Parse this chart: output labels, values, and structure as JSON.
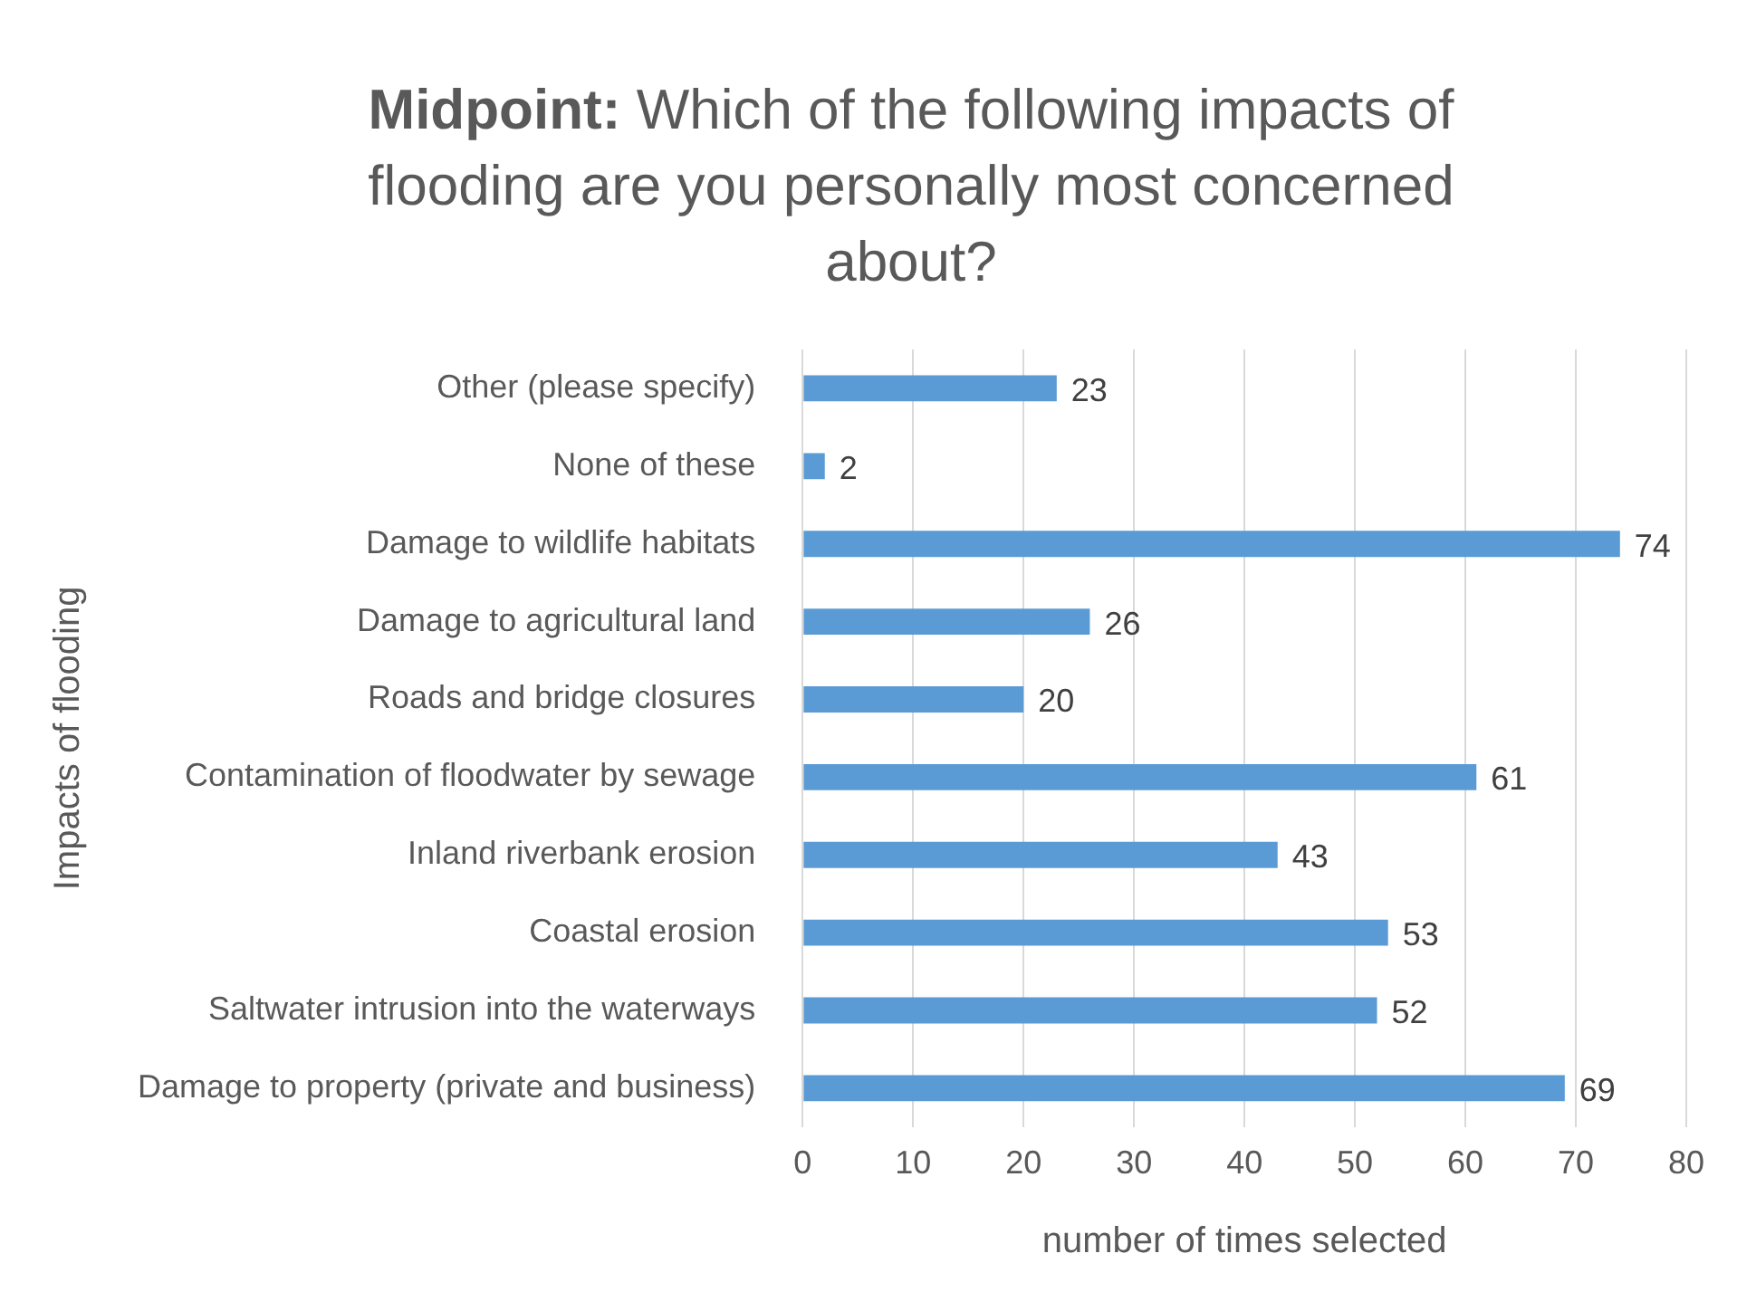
{
  "chart_data": {
    "type": "bar",
    "orientation": "horizontal",
    "title": "Midpoint: Which of the following impacts of flooding are you personally most concerned about?",
    "xlabel": "number of times selected",
    "ylabel": "Impacts of flooding",
    "categories": [
      "Other (please specify)",
      "None of these",
      "Damage to wildlife habitats",
      "Damage to agricultural land",
      "Roads and bridge closures",
      "Contamination of floodwater by sewage",
      "Inland riverbank erosion",
      "Coastal erosion",
      "Saltwater intrusion into the waterways",
      "Damage to property (private and business)"
    ],
    "values": [
      23,
      2,
      74,
      26,
      20,
      61,
      43,
      53,
      52,
      69
    ],
    "color": "#5b9bd5",
    "xlim": [
      0,
      80
    ],
    "xticks": [
      0,
      10,
      20,
      30,
      40,
      50,
      60,
      70,
      80
    ],
    "grid": "x",
    "data_labels": true
  }
}
